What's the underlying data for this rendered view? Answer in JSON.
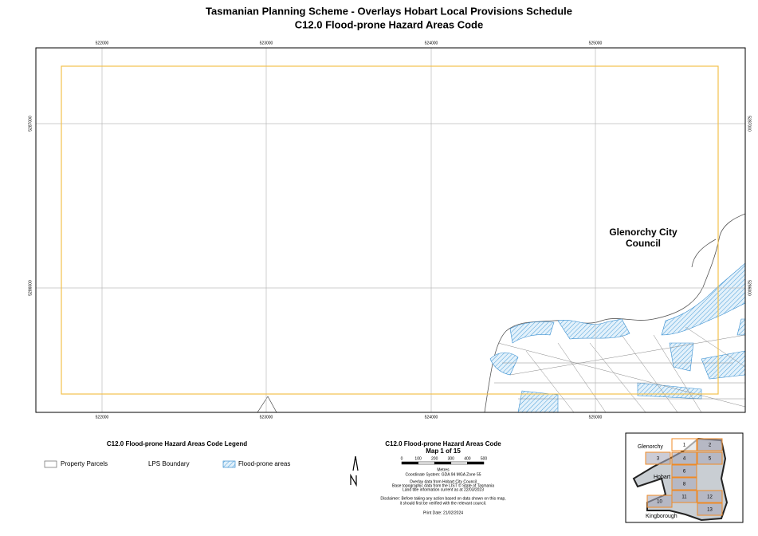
{
  "header": {
    "title": "Tasmanian Planning Scheme - Overlays Hobart Local Provisions Schedule",
    "subtitle": "C12.0 Flood-prone Hazard Areas Code"
  },
  "map": {
    "eastings": [
      522000,
      523000,
      524000,
      525000
    ],
    "northings": [
      5287000,
      5286000
    ],
    "place_label": [
      "Glenorchy City",
      "Council"
    ]
  },
  "legend": {
    "title": "C12.0 Flood-prone Hazard Areas Code Legend",
    "items": [
      "Property Parcels",
      "LPS Boundary",
      "Flood-prone areas"
    ]
  },
  "info": {
    "title": "C12.0 Flood-prone Hazard Areas Code",
    "map_number": "Map 1 of 15",
    "scale": [
      0,
      100,
      200,
      300,
      400,
      500
    ],
    "scale_unit": "Metres",
    "coordinate_system": "Coordinate System: GDA 94 MGA Zone 55",
    "sources": [
      "Overlay data from Hobart City Council",
      "Base topographic data from the LIST © State of Tasmania",
      "Land title information current as at 22/03/2023"
    ],
    "disclaimer": [
      "Disclaimer: Before taking any action based on data shown on this map,",
      "it should first be verified with the relevant council."
    ],
    "print_date": "Print Date: 21/02/2024"
  },
  "inset": {
    "labels": [
      "Glenorchy",
      "Hobart",
      "Kingborough"
    ],
    "tiles": [
      "1",
      "2",
      "3",
      "4",
      "5",
      "6",
      "8",
      "11",
      "12",
      "10",
      "13"
    ]
  }
}
